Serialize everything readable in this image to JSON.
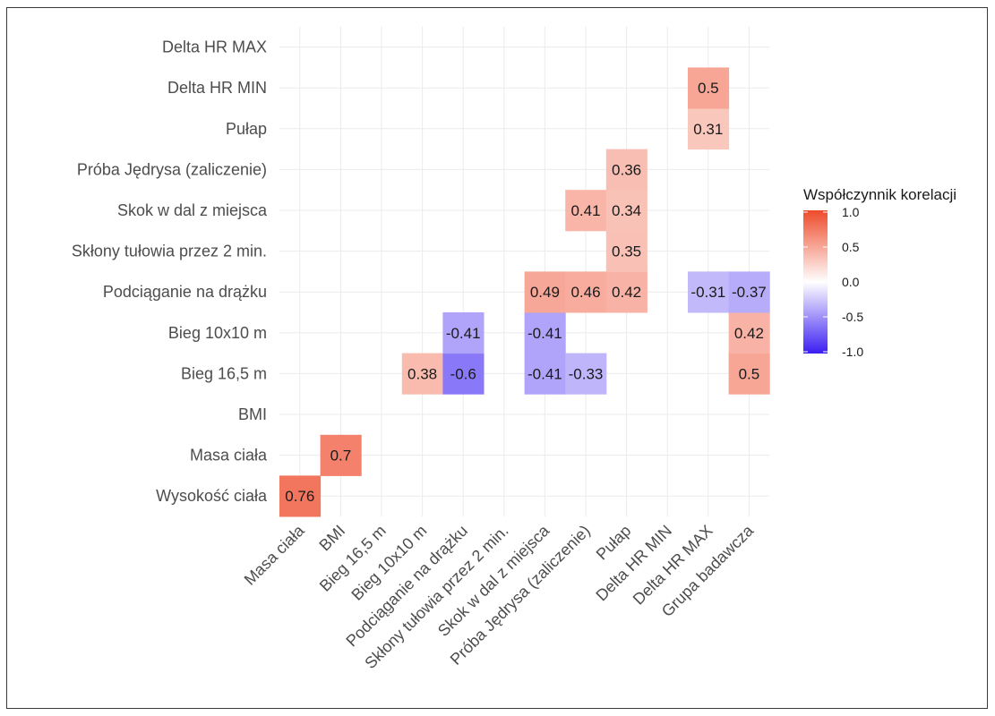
{
  "chart_data": {
    "type": "heatmap",
    "legend_title": "Współczynnik korelacji",
    "legend_ticks": [
      "1.0",
      "0.5",
      "0.0",
      "-0.5",
      "-1.0"
    ],
    "legend_range": [
      -1,
      1
    ],
    "legend_placement": "right",
    "colors": {
      "positive": "#ee4b2b",
      "zero": "#ffffff",
      "negative": "#3b1ef2"
    },
    "grid": true,
    "x_categories": [
      "Masa ciała",
      "BMI",
      "Bieg 16,5 m",
      "Bieg 10x10 m",
      "Podciąganie na drążku",
      "Skłony tułowia przez 2 min.",
      "Skok w dal z miejsca",
      "Próba Jędrysa (zaliczenie)",
      "Pułap",
      "Delta HR MIN",
      "Delta HR MAX",
      "Grupa badawcza"
    ],
    "y_categories": [
      "Wysokość ciała",
      "Masa ciała",
      "BMI",
      "Bieg 16,5 m",
      "Bieg 10x10 m",
      "Podciąganie na drążku",
      "Skłony tułowia przez 2 min.",
      "Skok w dal z miejsca",
      "Próba Jędrysa (zaliczenie)",
      "Pułap",
      "Delta HR MIN",
      "Delta HR MAX"
    ],
    "cells": [
      {
        "x": "Masa ciała",
        "y": "Wysokość ciała",
        "value": 0.76,
        "label": "0.76"
      },
      {
        "x": "BMI",
        "y": "Masa ciała",
        "value": 0.7,
        "label": "0.7"
      },
      {
        "x": "Bieg 10x10 m",
        "y": "Bieg 16,5 m",
        "value": 0.38,
        "label": "0.38"
      },
      {
        "x": "Podciąganie na drążku",
        "y": "Bieg 16,5 m",
        "value": -0.6,
        "label": "-0.6"
      },
      {
        "x": "Podciąganie na drążku",
        "y": "Bieg 10x10 m",
        "value": -0.41,
        "label": "-0.41"
      },
      {
        "x": "Skok w dal z miejsca",
        "y": "Bieg 16,5 m",
        "value": -0.41,
        "label": "-0.41"
      },
      {
        "x": "Skok w dal z miejsca",
        "y": "Bieg 10x10 m",
        "value": -0.41,
        "label": "-0.41"
      },
      {
        "x": "Skok w dal z miejsca",
        "y": "Podciąganie na drążku",
        "value": 0.49,
        "label": "0.49"
      },
      {
        "x": "Próba Jędrysa (zaliczenie)",
        "y": "Bieg 16,5 m",
        "value": -0.33,
        "label": "-0.33"
      },
      {
        "x": "Próba Jędrysa (zaliczenie)",
        "y": "Podciąganie na drążku",
        "value": 0.46,
        "label": "0.46"
      },
      {
        "x": "Próba Jędrysa (zaliczenie)",
        "y": "Skok w dal z miejsca",
        "value": 0.41,
        "label": "0.41"
      },
      {
        "x": "Pułap",
        "y": "Podciąganie na drążku",
        "value": 0.42,
        "label": "0.42"
      },
      {
        "x": "Pułap",
        "y": "Skłony tułowia przez 2 min.",
        "value": 0.35,
        "label": "0.35"
      },
      {
        "x": "Pułap",
        "y": "Skok w dal z miejsca",
        "value": 0.34,
        "label": "0.34"
      },
      {
        "x": "Pułap",
        "y": "Próba Jędrysa (zaliczenie)",
        "value": 0.36,
        "label": "0.36"
      },
      {
        "x": "Delta HR MAX",
        "y": "Podciąganie na drążku",
        "value": -0.31,
        "label": "-0.31"
      },
      {
        "x": "Delta HR MAX",
        "y": "Pułap",
        "value": 0.31,
        "label": "0.31"
      },
      {
        "x": "Delta HR MAX",
        "y": "Delta HR MIN",
        "value": 0.5,
        "label": "0.5"
      },
      {
        "x": "Grupa badawcza",
        "y": "Bieg 16,5 m",
        "value": 0.5,
        "label": "0.5"
      },
      {
        "x": "Grupa badawcza",
        "y": "Bieg 10x10 m",
        "value": 0.42,
        "label": "0.42"
      },
      {
        "x": "Grupa badawcza",
        "y": "Podciąganie na drążku",
        "value": -0.37,
        "label": "-0.37"
      }
    ]
  }
}
